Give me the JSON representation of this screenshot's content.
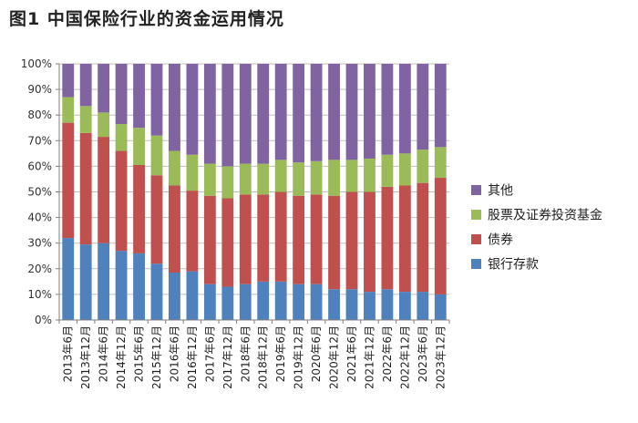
{
  "chart_data": {
    "type": "bar",
    "stacked": true,
    "title": "图1  中国保险行业的资金运用情况",
    "ylim": [
      0,
      100
    ],
    "y_ticks": [
      "0%",
      "10%",
      "20%",
      "30%",
      "40%",
      "50%",
      "60%",
      "70%",
      "80%",
      "90%",
      "100%"
    ],
    "legend_position": "right",
    "categories": [
      "2013年6月",
      "2013年12月",
      "2014年6月",
      "2014年12月",
      "2015年6月",
      "2015年12月",
      "2016年6月",
      "2016年12月",
      "2017年6月",
      "2017年12月",
      "2018年6月",
      "2018年12月",
      "2019年6月",
      "2019年12月",
      "2020年6月",
      "2020年12月",
      "2021年6月",
      "2021年12月",
      "2022年6月",
      "2022年12月",
      "2023年6月",
      "2023年12月"
    ],
    "series": [
      {
        "name": "银行存款",
        "color": "#4f81bd",
        "values": [
          32,
          29.5,
          30,
          27,
          26,
          22,
          18.5,
          19,
          14,
          13,
          14,
          15,
          15,
          14,
          14,
          12,
          12,
          11,
          12,
          11,
          11,
          10
        ]
      },
      {
        "name": "债券",
        "color": "#c0504d",
        "values": [
          45,
          43.5,
          41.5,
          39,
          34.5,
          34.5,
          34,
          31.5,
          34.5,
          34.5,
          35,
          34,
          35,
          34.5,
          35,
          36.5,
          38,
          39,
          40,
          41.5,
          42.5,
          45.5
        ]
      },
      {
        "name": "股票及证券投资基金",
        "color": "#9bbb59",
        "values": [
          10,
          10.5,
          9.5,
          10.5,
          14.5,
          15.5,
          13.5,
          14,
          12.5,
          12.5,
          12,
          12,
          12.5,
          13,
          13,
          14,
          12.5,
          13,
          12.5,
          12.5,
          13,
          12
        ]
      },
      {
        "name": "其他",
        "color": "#8064a2",
        "values": [
          13,
          16.5,
          19,
          23.5,
          25,
          28,
          34,
          35.5,
          39,
          40,
          39,
          39,
          37.5,
          38.5,
          38,
          37.5,
          37.5,
          37,
          35.5,
          35,
          33.5,
          32.5
        ]
      }
    ]
  }
}
